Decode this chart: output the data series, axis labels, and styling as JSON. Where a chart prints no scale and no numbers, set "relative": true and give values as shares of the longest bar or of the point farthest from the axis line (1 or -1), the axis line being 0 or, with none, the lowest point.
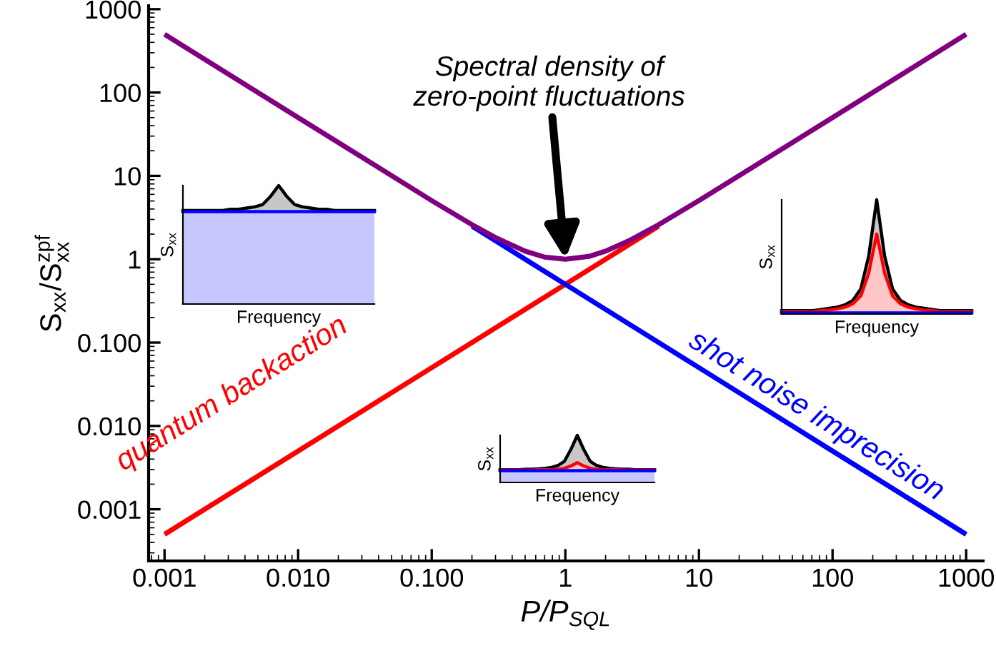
{
  "chart_data": [
    {
      "type": "line",
      "xlabel": "P/P$_{SQL}$",
      "ylabel": "S$_{xx}$/S$^{zpf}$$_{xx}$",
      "log": "xy",
      "grid": false,
      "xlim": [
        0.00076,
        1340
      ],
      "ylim": [
        0.00024,
        1100
      ],
      "xticks": [
        0.001,
        {
          "value": 0.01,
          "label": "0.010"
        },
        {
          "value": 0.1,
          "label": "0.100"
        },
        1,
        10,
        100,
        1000
      ],
      "yticks": [
        0.001,
        {
          "value": 0.01,
          "label": "0.010"
        },
        {
          "value": 0.1,
          "label": "0.100"
        },
        1,
        10,
        100,
        1000
      ],
      "annotations": [
        {
          "text": "Spectral density of\nzero-point fluctuations",
          "x": 1,
          "y": 1
        }
      ],
      "series": [
        {
          "name": "quantum backaction",
          "color": "#ff0000",
          "x": [
            0.001,
            0.01,
            0.1,
            1,
            5
          ],
          "values": [
            0.0005,
            0.005,
            0.05,
            0.5,
            2.5
          ]
        },
        {
          "name": "shot noise imprecision",
          "color": "#0000ff",
          "x": [
            0.2,
            1,
            10,
            100,
            1000
          ],
          "values": [
            2.5,
            0.5,
            0.05,
            0.005,
            0.0005
          ]
        },
        {
          "color": "#800080",
          "x": [
            0.001,
            0.01,
            0.1,
            0.2,
            0.3,
            0.5,
            0.7,
            1,
            1.5,
            2,
            3,
            5,
            10,
            100,
            1000
          ],
          "values": [
            500,
            50,
            5.05,
            2.6,
            1.82,
            1.25,
            1.06,
            1,
            1.08,
            1.25,
            1.67,
            2.6,
            5.05,
            50,
            500
          ]
        }
      ]
    },
    {
      "type": "area",
      "relative": true,
      "xlabel": "Frequency",
      "ylabel": "S$_{xx}$",
      "categories": [
        null,
        null,
        null,
        null,
        null,
        null,
        null,
        null,
        null,
        null,
        null,
        null,
        null,
        null,
        null,
        null,
        null,
        null,
        null,
        null,
        null,
        null,
        null,
        null,
        null
      ],
      "series": [
        {
          "color": "#000000",
          "values": [
            0.79,
            0.79,
            0.79,
            0.79,
            0.79,
            0.79,
            0.8,
            0.8,
            0.81,
            0.82,
            0.84,
            0.91,
            1.0,
            0.91,
            0.84,
            0.82,
            0.81,
            0.8,
            0.8,
            0.79,
            0.79,
            0.79,
            0.79,
            0.79,
            0.79
          ]
        },
        {
          "color": "#0000ff",
          "values": [
            0.78,
            0.78,
            0.78,
            0.78,
            0.78,
            0.78,
            0.78,
            0.78,
            0.78,
            0.78,
            0.78,
            0.78,
            0.78,
            0.78,
            0.78,
            0.78,
            0.78,
            0.78,
            0.78,
            0.78,
            0.78,
            0.78,
            0.78,
            0.78,
            0.78
          ]
        }
      ]
    },
    {
      "type": "area",
      "relative": true,
      "xlabel": "Frequency",
      "ylabel": "S$_{xx}$",
      "categories": [
        null,
        null,
        null,
        null,
        null,
        null,
        null,
        null,
        null,
        null,
        null,
        null,
        null,
        null,
        null,
        null,
        null,
        null,
        null,
        null,
        null,
        null,
        null,
        null,
        null
      ],
      "series": [
        {
          "color": "#000000",
          "values": [
            0.03,
            0.03,
            0.03,
            0.03,
            0.03,
            0.04,
            0.05,
            0.06,
            0.08,
            0.12,
            0.22,
            0.51,
            1.0,
            0.51,
            0.22,
            0.12,
            0.08,
            0.06,
            0.05,
            0.04,
            0.03,
            0.03,
            0.03,
            0.03,
            0.03
          ]
        },
        {
          "color": "#ff0000",
          "values": [
            0.02,
            0.02,
            0.02,
            0.02,
            0.02,
            0.03,
            0.035,
            0.045,
            0.06,
            0.09,
            0.16,
            0.36,
            0.7,
            0.36,
            0.16,
            0.09,
            0.06,
            0.045,
            0.035,
            0.03,
            0.02,
            0.02,
            0.02,
            0.02,
            0.02
          ]
        },
        {
          "color": "#0000ff",
          "values": [
            0.01,
            0.01,
            0.01,
            0.01,
            0.01,
            0.01,
            0.01,
            0.01,
            0.01,
            0.01,
            0.01,
            0.01,
            0.01,
            0.01,
            0.01,
            0.01,
            0.01,
            0.01,
            0.01,
            0.01,
            0.01,
            0.01,
            0.01,
            0.01,
            0.01
          ]
        }
      ]
    },
    {
      "type": "area",
      "relative": true,
      "xlabel": "Frequency",
      "ylabel": "S$_{xx}$",
      "categories": [
        null,
        null,
        null,
        null,
        null,
        null,
        null,
        null,
        null,
        null,
        null,
        null,
        null,
        null,
        null,
        null,
        null,
        null,
        null,
        null,
        null,
        null,
        null,
        null,
        null
      ],
      "series": [
        {
          "color": "#000000",
          "values": [
            0.27,
            0.27,
            0.27,
            0.27,
            0.28,
            0.28,
            0.29,
            0.3,
            0.32,
            0.36,
            0.45,
            0.7,
            1.0,
            0.7,
            0.45,
            0.36,
            0.32,
            0.3,
            0.29,
            0.28,
            0.28,
            0.27,
            0.27,
            0.27,
            0.27
          ]
        },
        {
          "color": "#ff0000",
          "values": [
            0.26,
            0.26,
            0.26,
            0.26,
            0.26,
            0.26,
            0.27,
            0.27,
            0.27,
            0.28,
            0.3,
            0.35,
            0.42,
            0.35,
            0.3,
            0.28,
            0.27,
            0.27,
            0.27,
            0.26,
            0.26,
            0.26,
            0.26,
            0.26,
            0.26
          ]
        },
        {
          "color": "#0000ff",
          "values": [
            0.25,
            0.25,
            0.25,
            0.25,
            0.25,
            0.25,
            0.25,
            0.25,
            0.25,
            0.25,
            0.25,
            0.25,
            0.25,
            0.25,
            0.25,
            0.25,
            0.25,
            0.25,
            0.25,
            0.25,
            0.25,
            0.25,
            0.25,
            0.25,
            0.25
          ]
        }
      ]
    }
  ]
}
